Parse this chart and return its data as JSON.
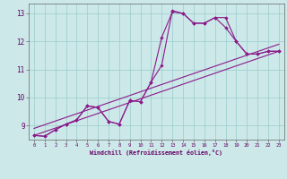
{
  "bg_color": "#cce8e8",
  "line_color": "#8b1a8b",
  "grid_color": "#99cccc",
  "xlabel": "Windchill (Refroidissement éolien,°C)",
  "yticks": [
    9,
    10,
    11,
    12,
    13
  ],
  "xlim": [
    -0.5,
    23.5
  ],
  "ylim": [
    8.5,
    13.35
  ],
  "series1_x": [
    0,
    1,
    2,
    3,
    4,
    5,
    6,
    7,
    8,
    9,
    10,
    11,
    12,
    13,
    14,
    15,
    16,
    17,
    18,
    19,
    20,
    21,
    22,
    23
  ],
  "series1_y": [
    8.65,
    8.62,
    8.85,
    9.05,
    9.2,
    9.7,
    9.65,
    9.15,
    9.05,
    9.9,
    9.85,
    10.55,
    11.15,
    13.1,
    13.0,
    12.65,
    12.65,
    12.85,
    12.85,
    12.0,
    11.55,
    11.55,
    11.65,
    11.65
  ],
  "series2_x": [
    0,
    1,
    2,
    3,
    4,
    5,
    6,
    7,
    8,
    9,
    10,
    11,
    12,
    13,
    14,
    15,
    16,
    17,
    18,
    19,
    20,
    21,
    22,
    23
  ],
  "series2_y": [
    8.65,
    8.62,
    8.85,
    9.05,
    9.2,
    9.7,
    9.65,
    9.15,
    9.05,
    9.9,
    9.85,
    10.55,
    12.15,
    13.05,
    13.0,
    12.65,
    12.65,
    12.85,
    12.5,
    12.0,
    11.55,
    11.55,
    11.65,
    11.65
  ],
  "trend1_x": [
    0,
    23
  ],
  "trend1_y": [
    8.65,
    11.65
  ],
  "trend2_x": [
    0,
    23
  ],
  "trend2_y": [
    8.9,
    11.9
  ],
  "xtick_labels": [
    "0",
    "1",
    "2",
    "3",
    "4",
    "5",
    "6",
    "7",
    "8",
    "9",
    "10",
    "11",
    "12",
    "13",
    "14",
    "15",
    "16",
    "17",
    "18",
    "19",
    "20",
    "21",
    "22",
    "23"
  ],
  "tick_color": "#660066",
  "label_color": "#660066"
}
